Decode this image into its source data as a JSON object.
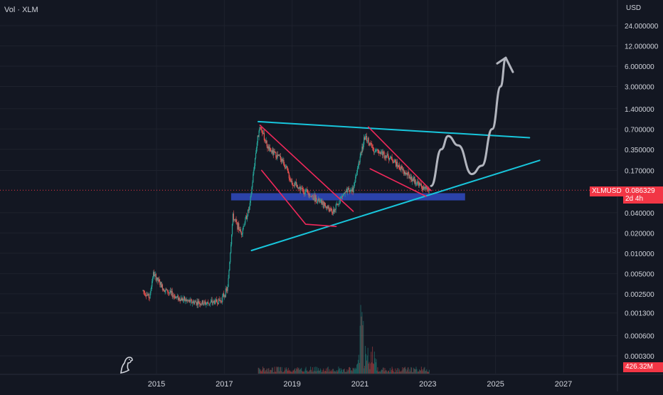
{
  "legend": {
    "volume_label": "Vol · XLM"
  },
  "axis": {
    "unit": "USD"
  },
  "chart_data": {
    "type": "candlestick",
    "symbol": "XLMUSD",
    "y_scale": "log",
    "y_ticks": [
      "24.000000",
      "12.000000",
      "6.000000",
      "3.000000",
      "1.400000",
      "0.700000",
      "0.350000",
      "0.170000",
      "0.040000",
      "0.020000",
      "0.010000",
      "0.005000",
      "0.002500",
      "0.001300",
      "0.000600",
      "0.000300"
    ],
    "y_tick_values": [
      24,
      12,
      6,
      3,
      1.4,
      0.7,
      0.35,
      0.17,
      0.04,
      0.02,
      0.01,
      0.005,
      0.0025,
      0.0013,
      0.0006,
      0.0003
    ],
    "x_ticks": [
      "2015",
      "2017",
      "2019",
      "2021",
      "2023",
      "2025",
      "2027"
    ],
    "x_tick_values": [
      2015,
      2017,
      2019,
      2021,
      2023,
      2025,
      2027
    ],
    "ylim": [
      0.0002,
      40
    ],
    "xlim": [
      2014.2,
      2028.2
    ],
    "last_price": {
      "symbol": "XLMUSD",
      "value": "0.086329",
      "countdown": "2d 4h"
    },
    "last_volume": "426.32M",
    "price_path": [
      [
        2014.6,
        0.0028
      ],
      [
        2014.8,
        0.0022
      ],
      [
        2014.9,
        0.005
      ],
      [
        2015.2,
        0.003
      ],
      [
        2015.6,
        0.0022
      ],
      [
        2016.0,
        0.0019
      ],
      [
        2016.5,
        0.0018
      ],
      [
        2016.9,
        0.002
      ],
      [
        2017.1,
        0.003
      ],
      [
        2017.25,
        0.035
      ],
      [
        2017.5,
        0.02
      ],
      [
        2017.75,
        0.05
      ],
      [
        2017.95,
        0.4
      ],
      [
        2018.05,
        0.8
      ],
      [
        2018.3,
        0.35
      ],
      [
        2018.7,
        0.25
      ],
      [
        2019.0,
        0.11
      ],
      [
        2019.5,
        0.075
      ],
      [
        2019.9,
        0.055
      ],
      [
        2020.2,
        0.04
      ],
      [
        2020.5,
        0.075
      ],
      [
        2020.8,
        0.09
      ],
      [
        2020.95,
        0.2
      ],
      [
        2021.15,
        0.55
      ],
      [
        2021.4,
        0.35
      ],
      [
        2021.7,
        0.3
      ],
      [
        2021.95,
        0.25
      ],
      [
        2022.3,
        0.16
      ],
      [
        2022.6,
        0.12
      ],
      [
        2022.9,
        0.09
      ],
      [
        2023.05,
        0.086
      ]
    ],
    "projection": [
      [
        2023.1,
        0.1
      ],
      [
        2023.4,
        0.35
      ],
      [
        2023.6,
        0.55
      ],
      [
        2023.9,
        0.4
      ],
      [
        2024.3,
        0.15
      ],
      [
        2024.6,
        0.2
      ],
      [
        2024.9,
        0.7
      ],
      [
        2025.15,
        3.0
      ],
      [
        2025.3,
        8.0
      ]
    ],
    "trendlines": {
      "resistance": [
        [
          2018.0,
          0.9
        ],
        [
          2026.0,
          0.52
        ]
      ],
      "support": [
        [
          2017.8,
          0.011
        ],
        [
          2026.3,
          0.24
        ]
      ],
      "channel_1": [
        [
          [
            2018.05,
            0.8
          ],
          [
            2020.8,
            0.042
          ]
        ],
        [
          [
            2018.1,
            0.17
          ],
          [
            2019.4,
            0.027
          ],
          [
            2020.3,
            0.025
          ]
        ]
      ],
      "channel_2": [
        [
          [
            2021.25,
            0.75
          ],
          [
            2023.1,
            0.085
          ]
        ],
        [
          [
            2021.3,
            0.18
          ],
          [
            2022.95,
            0.07
          ]
        ]
      ]
    },
    "support_zone": {
      "x": [
        2017.2,
        2024.1
      ],
      "y": [
        0.061,
        0.078
      ]
    },
    "colors": {
      "up": "#26a69a",
      "down": "#ef5350",
      "trend": "#18c6dc",
      "channel": "#f0285a",
      "zone": "#2f47b8",
      "projection": "#b2b5be"
    }
  }
}
